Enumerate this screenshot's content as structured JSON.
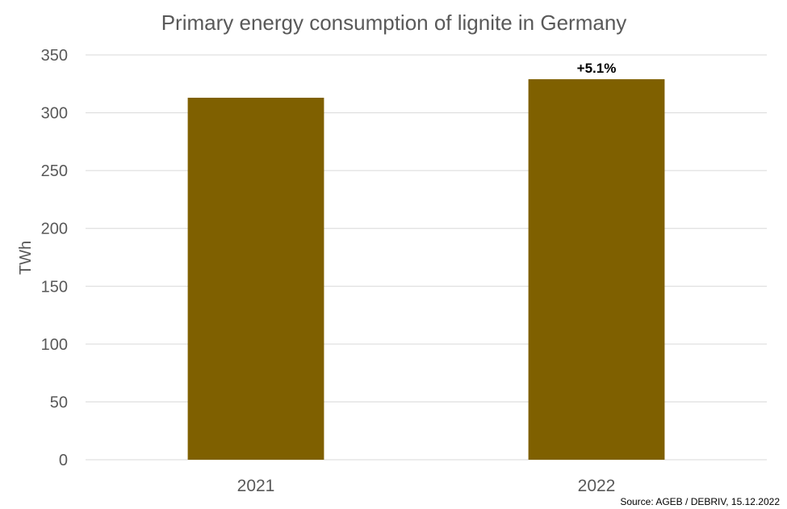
{
  "chart_data": {
    "type": "bar",
    "title": "Primary energy consumption of lignite in Germany",
    "xlabel": "",
    "ylabel": "TWh",
    "categories": [
      "2021",
      "2022"
    ],
    "values": [
      313,
      329
    ],
    "data_labels": [
      "",
      "+5.1%"
    ],
    "ylim": [
      0,
      350
    ],
    "yticks": [
      0,
      50,
      100,
      150,
      200,
      250,
      300,
      350
    ],
    "ytick_labels": [
      "0",
      "50",
      "100",
      "150",
      "200",
      "250",
      "300",
      "350"
    ],
    "grid": true,
    "legend": "none",
    "bar_color": "#7f6000",
    "source": "Source: AGEB / DEBRIV, 15.12.2022"
  }
}
